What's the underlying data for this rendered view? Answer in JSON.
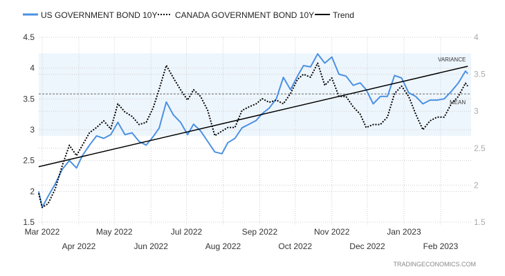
{
  "chart_data": {
    "type": "line",
    "legend": [
      "US GOVERNMENT BOND 10Y",
      "CANADA GOVERNMENT BOND 10Y",
      "Trend"
    ],
    "legend_placement": "top-left",
    "grid": true,
    "left_axis": {
      "ylim": [
        1.5,
        4.5
      ],
      "ticks": [
        "4.5",
        "4",
        "3.5",
        "3",
        "2.5",
        "2",
        "1.5"
      ]
    },
    "right_axis": {
      "ylim": [
        1.5,
        4
      ],
      "ticks": [
        "4",
        "3.5",
        "3",
        "2.5",
        "2",
        "1.5"
      ]
    },
    "x_ticks": [
      {
        "label": "Mar 2022",
        "date": "2022-03-01"
      },
      {
        "label": "Apr 2022",
        "date": "2022-04-01"
      },
      {
        "label": "May 2022",
        "date": "2022-05-01"
      },
      {
        "label": "Jun 2022",
        "date": "2022-06-01"
      },
      {
        "label": "Jul 2022",
        "date": "2022-07-01"
      },
      {
        "label": "Aug 2022",
        "date": "2022-08-01"
      },
      {
        "label": "Sep 2022",
        "date": "2022-09-01"
      },
      {
        "label": "Oct 2022",
        "date": "2022-10-01"
      },
      {
        "label": "Nov 2022",
        "date": "2022-11-01"
      },
      {
        "label": "Dec 2022",
        "date": "2022-12-01"
      },
      {
        "label": "Jan 2023",
        "date": "2023-01-01"
      },
      {
        "label": "Feb 2023",
        "date": "2023-02-01"
      }
    ],
    "x": [
      "2022-02-26",
      "2022-03-01",
      "2022-03-06",
      "2022-03-12",
      "2022-03-18",
      "2022-03-24",
      "2022-03-30",
      "2022-04-04",
      "2022-04-10",
      "2022-04-16",
      "2022-04-22",
      "2022-04-28",
      "2022-05-04",
      "2022-05-10",
      "2022-05-16",
      "2022-05-22",
      "2022-05-28",
      "2022-06-03",
      "2022-06-08",
      "2022-06-14",
      "2022-06-20",
      "2022-06-26",
      "2022-07-02",
      "2022-07-07",
      "2022-07-13",
      "2022-07-19",
      "2022-07-25",
      "2022-07-31",
      "2022-08-05",
      "2022-08-11",
      "2022-08-17",
      "2022-08-23",
      "2022-08-29",
      "2022-09-03",
      "2022-09-09",
      "2022-09-15",
      "2022-09-21",
      "2022-09-27",
      "2022-10-03",
      "2022-10-08",
      "2022-10-14",
      "2022-10-20",
      "2022-10-26",
      "2022-11-01",
      "2022-11-07",
      "2022-11-13",
      "2022-11-19",
      "2022-11-25",
      "2022-11-30",
      "2022-12-06",
      "2022-12-12",
      "2022-12-18",
      "2022-12-24",
      "2022-12-30",
      "2023-01-05",
      "2023-01-11",
      "2023-01-17",
      "2023-01-23",
      "2023-01-29",
      "2023-02-04",
      "2023-02-10",
      "2023-02-16",
      "2023-02-22",
      "2023-02-24"
    ],
    "series": [
      {
        "name": "US GOVERNMENT BOND 10Y",
        "axis": "left",
        "color": "#4a90e2",
        "style": "solid",
        "values": [
          2.0,
          1.74,
          1.92,
          2.12,
          2.36,
          2.5,
          2.38,
          2.58,
          2.75,
          2.9,
          2.86,
          2.92,
          3.12,
          2.92,
          2.95,
          2.81,
          2.75,
          2.89,
          3.03,
          3.45,
          3.24,
          3.12,
          2.92,
          3.09,
          2.98,
          2.81,
          2.64,
          2.61,
          2.79,
          2.86,
          3.03,
          3.09,
          3.15,
          3.26,
          3.35,
          3.5,
          3.85,
          3.65,
          3.87,
          4.04,
          4.02,
          4.23,
          4.08,
          4.18,
          3.9,
          3.87,
          3.72,
          3.76,
          3.65,
          3.42,
          3.54,
          3.54,
          3.88,
          3.84,
          3.6,
          3.54,
          3.42,
          3.48,
          3.48,
          3.5,
          3.62,
          3.76,
          3.95,
          3.91
        ]
      },
      {
        "name": "CANADA GOVERNMENT BOND 10Y",
        "axis": "right",
        "color": "#000000",
        "style": "dotted",
        "values": [
          1.89,
          1.7,
          1.75,
          1.95,
          2.27,
          2.54,
          2.4,
          2.54,
          2.71,
          2.78,
          2.87,
          2.76,
          3.1,
          2.99,
          2.93,
          2.82,
          2.85,
          3.05,
          3.3,
          3.62,
          3.45,
          3.29,
          3.15,
          3.29,
          3.2,
          3.01,
          2.67,
          2.73,
          2.78,
          2.78,
          3.01,
          3.06,
          3.1,
          3.17,
          3.12,
          3.15,
          3.1,
          3.24,
          3.43,
          3.5,
          3.46,
          3.65,
          3.35,
          3.45,
          3.2,
          3.2,
          3.06,
          2.96,
          2.78,
          2.82,
          2.82,
          2.92,
          3.24,
          3.34,
          3.2,
          2.96,
          2.75,
          2.87,
          2.92,
          2.92,
          3.1,
          3.2,
          3.38,
          3.34
        ]
      },
      {
        "name": "Trend",
        "axis": "left",
        "color": "#000000",
        "style": "solid",
        "start": 2.4,
        "end": 4.03
      }
    ],
    "annotations": {
      "variance_label": "VARIANCE",
      "variance_band": [
        2.9,
        4.24
      ],
      "variance_color": "#eef6fd",
      "mean_label": "MEAN",
      "mean_value": 3.58
    }
  },
  "watermark": "TRADINGECONOMICS.COM"
}
